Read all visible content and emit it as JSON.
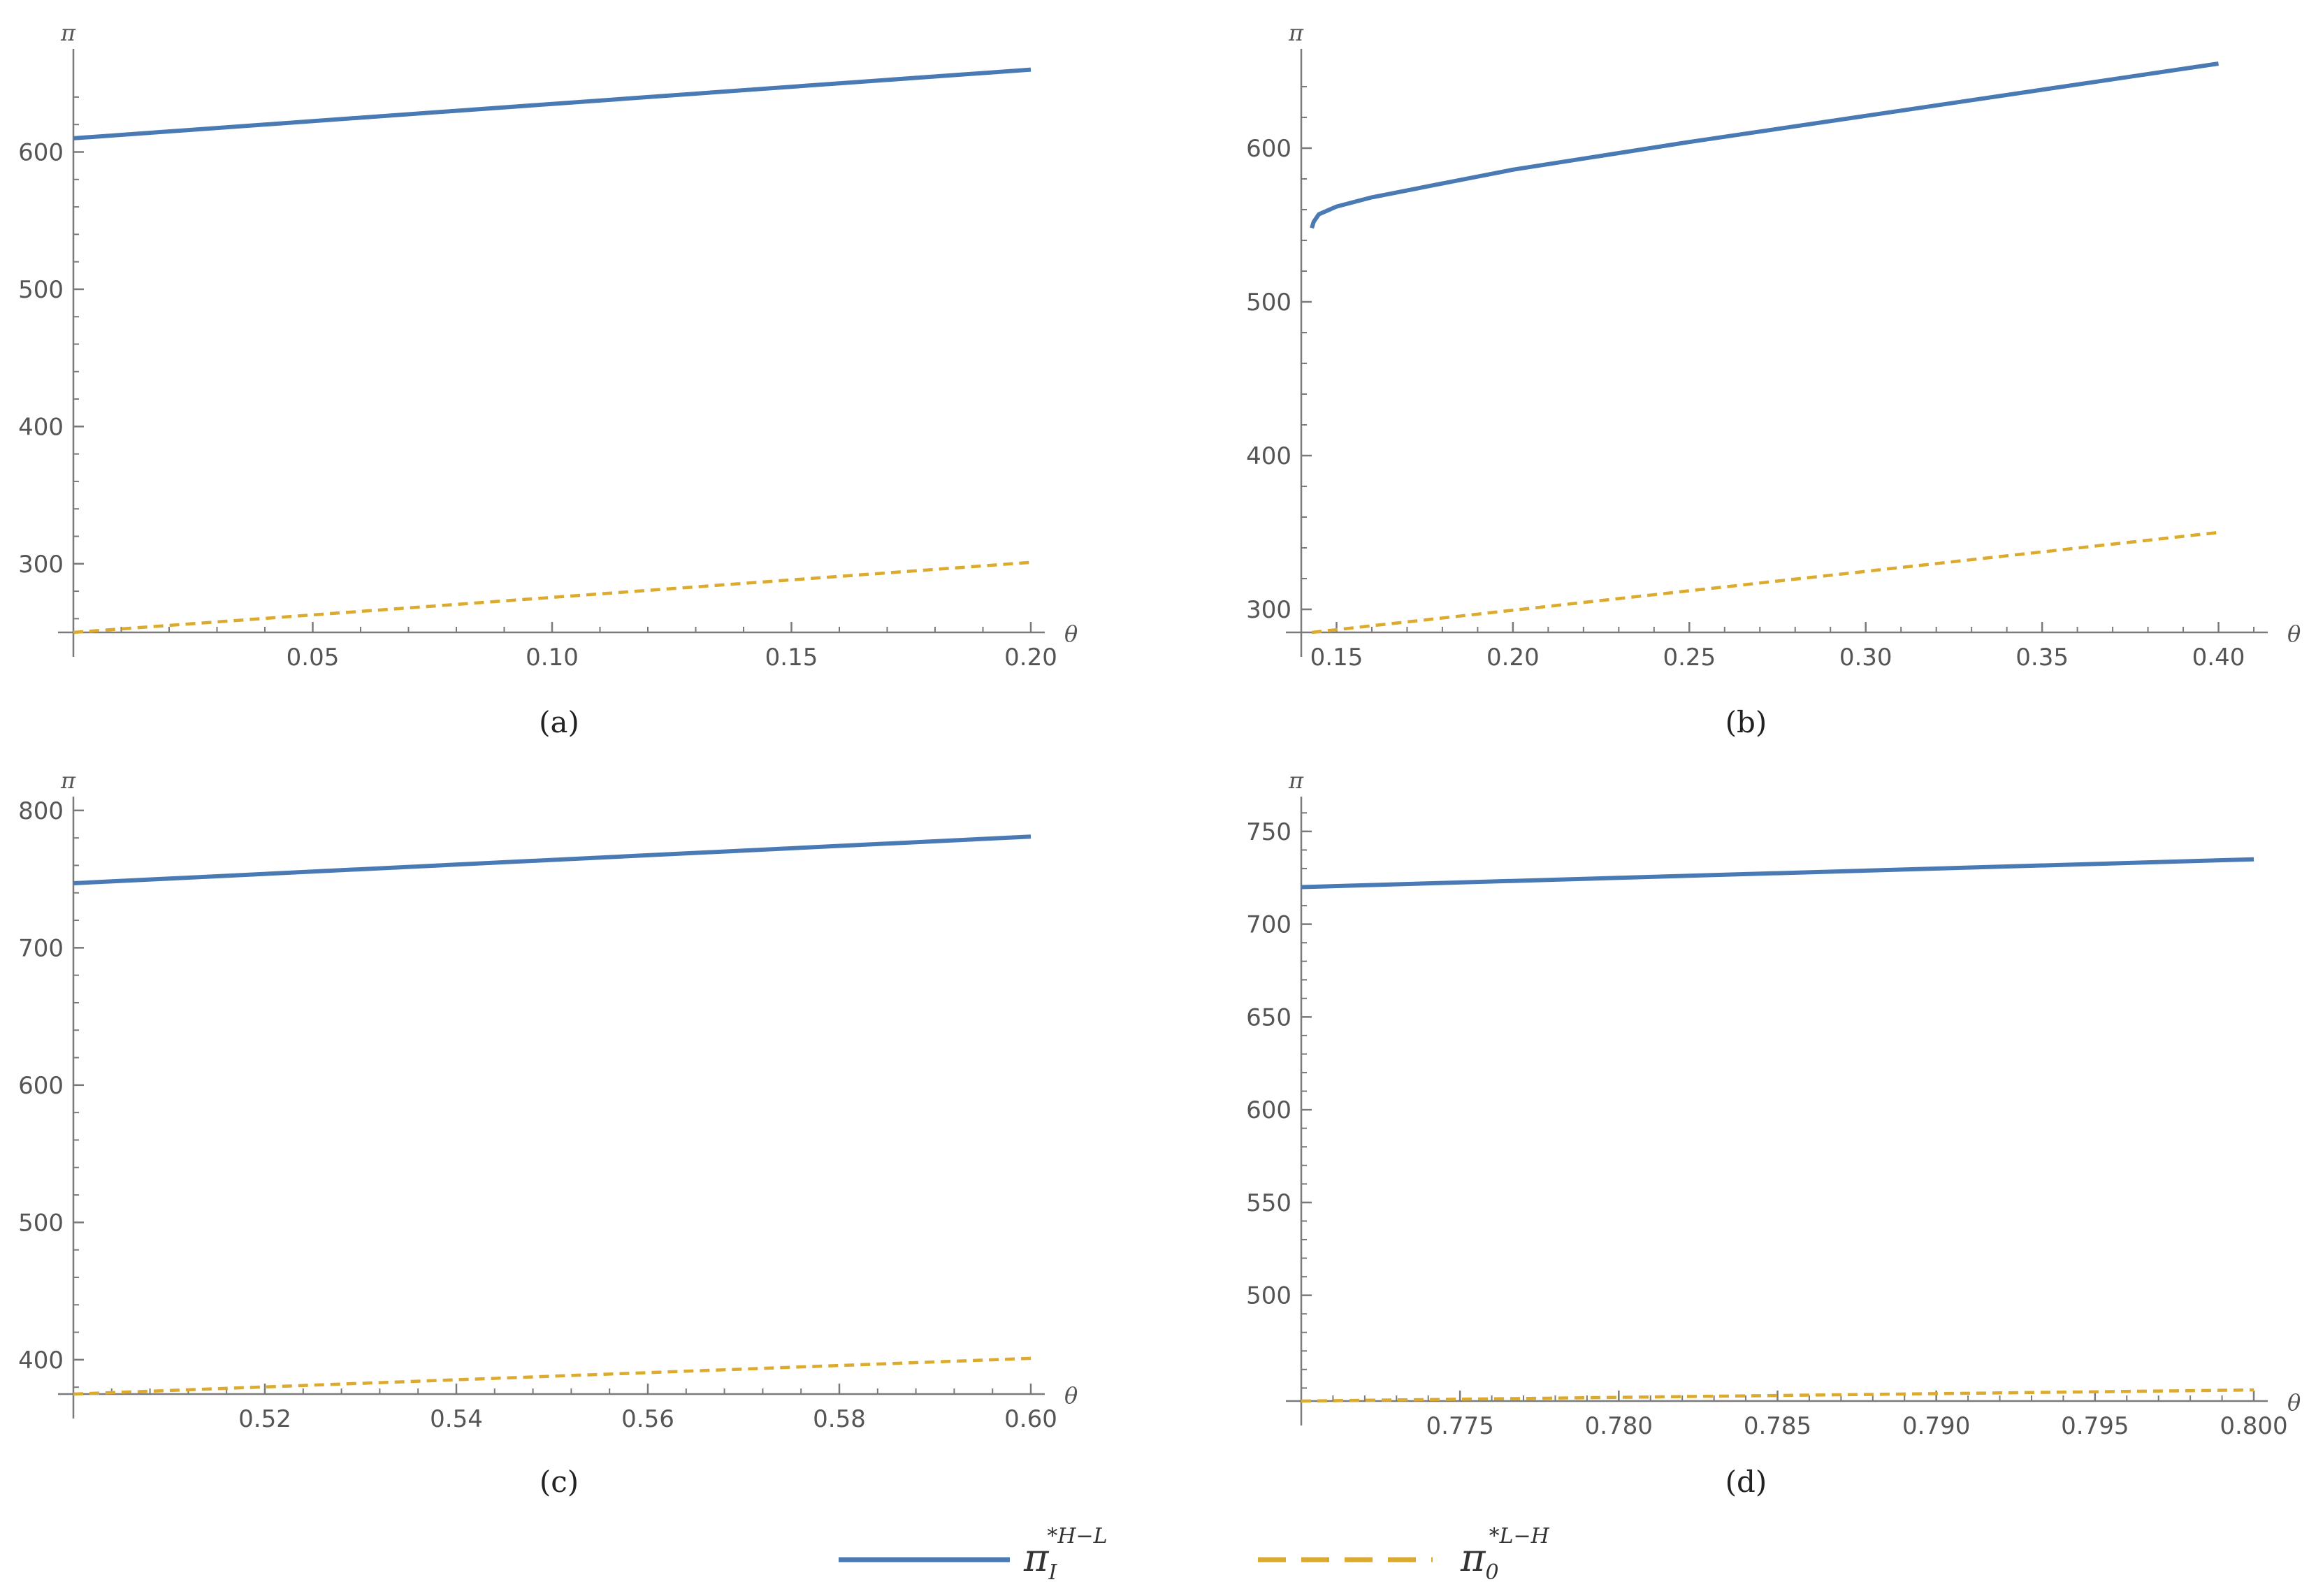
{
  "colors": {
    "series1": "#4a7ab4",
    "series2": "#dcaa2c",
    "axis": "#7a7a7a",
    "text": "#555555"
  },
  "legend": [
    {
      "base": "π",
      "sub": "I",
      "sup": "*H−L",
      "style": "solid",
      "color": "#4a7ab4"
    },
    {
      "base": "π",
      "sub": "0",
      "sup": "*L−H",
      "style": "dashed",
      "color": "#dcaa2c"
    }
  ],
  "chart_data": [
    {
      "type": "line",
      "caption": "(a)",
      "xlabel": "θ",
      "ylabel": "π",
      "xlim": [
        0.0,
        0.2
      ],
      "ylim": [
        250,
        670
      ],
      "xticks": [
        0.05,
        0.1,
        0.15,
        0.2
      ],
      "xtick_labels": [
        "0.05",
        "0.10",
        "0.15",
        "0.20"
      ],
      "yticks": [
        300,
        400,
        500,
        600
      ],
      "ytick_labels": [
        "300",
        "400",
        "500",
        "600"
      ],
      "series": [
        {
          "name": "π_I^{*H-L}",
          "style": "solid",
          "x": [
            0.0,
            0.2
          ],
          "y": [
            610,
            660
          ]
        },
        {
          "name": "π_0^{*L-H}",
          "style": "dashed",
          "x": [
            0.0,
            0.2
          ],
          "y": [
            250,
            301
          ]
        }
      ]
    },
    {
      "type": "line",
      "caption": "(b)",
      "xlabel": "θ",
      "ylabel": "π",
      "xlim": [
        0.14,
        0.41
      ],
      "ylim": [
        285,
        660
      ],
      "xticks": [
        0.15,
        0.2,
        0.25,
        0.3,
        0.35,
        0.4
      ],
      "xtick_labels": [
        "0.15",
        "0.20",
        "0.25",
        "0.30",
        "0.35",
        "0.40"
      ],
      "yticks": [
        300,
        400,
        500,
        600
      ],
      "ytick_labels": [
        "300",
        "400",
        "500",
        "600"
      ],
      "series": [
        {
          "name": "π_I^{*H-L}",
          "style": "solid",
          "x": [
            0.143,
            0.1435,
            0.145,
            0.15,
            0.16,
            0.18,
            0.2,
            0.25,
            0.3,
            0.35,
            0.4
          ],
          "y": [
            548,
            552,
            557,
            562,
            568,
            577,
            586,
            604,
            621,
            638,
            655
          ]
        },
        {
          "name": "π_0^{*L-H}",
          "style": "dashed",
          "x": [
            0.143,
            0.4
          ],
          "y": [
            285,
            350
          ]
        }
      ]
    },
    {
      "type": "line",
      "caption": "(c)",
      "xlabel": "θ",
      "ylabel": "π",
      "xlim": [
        0.5,
        0.6
      ],
      "ylim": [
        375,
        805
      ],
      "xticks": [
        0.52,
        0.54,
        0.56,
        0.58,
        0.6
      ],
      "xtick_labels": [
        "0.52",
        "0.54",
        "0.56",
        "0.58",
        "0.60"
      ],
      "yticks": [
        400,
        500,
        600,
        700,
        800
      ],
      "ytick_labels": [
        "400",
        "500",
        "600",
        "700",
        "800"
      ],
      "series": [
        {
          "name": "π_I^{*H-L}",
          "style": "solid",
          "x": [
            0.5,
            0.6
          ],
          "y": [
            747,
            781
          ]
        },
        {
          "name": "π_0^{*L-H}",
          "style": "dashed",
          "x": [
            0.5,
            0.6
          ],
          "y": [
            375,
            401
          ]
        }
      ]
    },
    {
      "type": "line",
      "caption": "(d)",
      "xlabel": "θ",
      "ylabel": "π",
      "xlim": [
        0.77,
        0.8
      ],
      "ylim": [
        443,
        765
      ],
      "xticks": [
        0.775,
        0.78,
        0.785,
        0.79,
        0.795,
        0.8
      ],
      "xtick_labels": [
        "0.775",
        "0.780",
        "0.785",
        "0.790",
        "0.795",
        "0.800"
      ],
      "yticks": [
        500,
        550,
        600,
        650,
        700,
        750
      ],
      "ytick_labels": [
        "500",
        "550",
        "600",
        "650",
        "700",
        "750"
      ],
      "series": [
        {
          "name": "π_I^{*H-L}",
          "style": "solid",
          "x": [
            0.77,
            0.8
          ],
          "y": [
            720,
            735
          ]
        },
        {
          "name": "π_0^{*L-H}",
          "style": "dashed",
          "x": [
            0.77,
            0.8
          ],
          "y": [
            443,
            449
          ]
        }
      ]
    }
  ]
}
